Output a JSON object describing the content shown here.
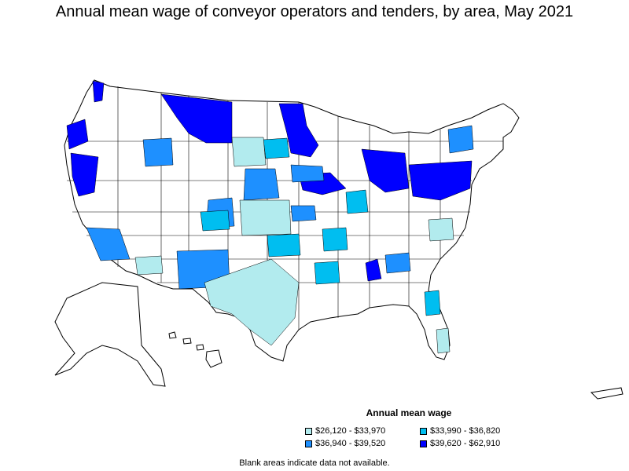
{
  "title": "Annual mean wage of conveyor operators and tenders, by area, May 2021",
  "legend": {
    "title": "Annual mean wage",
    "items": [
      {
        "label": "$26,120 - $33,970",
        "color": "#b2ebee"
      },
      {
        "label": "$33,990 - $36,820",
        "color": "#00bef0"
      },
      {
        "label": "$36,940 - $39,520",
        "color": "#1e90ff"
      },
      {
        "label": "$39,620 - $62,910",
        "color": "#0000ff"
      }
    ]
  },
  "footnote": "Blank areas indicate data not available.",
  "colors": {
    "no_data": "#ffffff",
    "border": "#000000"
  }
}
